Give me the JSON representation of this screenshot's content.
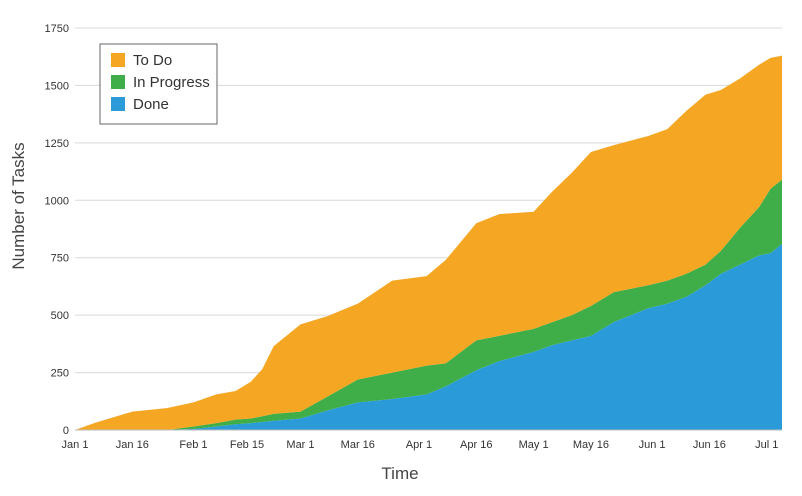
{
  "chart_data": {
    "type": "area",
    "stacked": true,
    "title": "",
    "xlabel": "Time",
    "ylabel": "Number of Tasks",
    "ylim": [
      0,
      1750
    ],
    "yticks": [
      0,
      250,
      500,
      750,
      1000,
      1250,
      1500,
      1750
    ],
    "xlim": [
      "Jan 1",
      "Jul 5"
    ],
    "xtick_labels": [
      "Jan 1",
      "Jan 16",
      "Feb 1",
      "Feb 15",
      "Mar 1",
      "Mar 16",
      "Apr 1",
      "Apr 16",
      "May 1",
      "May 16",
      "Jun 1",
      "Jun 16",
      "Jul 1"
    ],
    "grid": "horizontal",
    "legend_position": "top-left",
    "x": [
      "Jan 1",
      "Jan 6",
      "Jan 16",
      "Jan 25",
      "Feb 1",
      "Feb 7",
      "Feb 12",
      "Feb 16",
      "Feb 19",
      "Feb 22",
      "Mar 1",
      "Mar 8",
      "Mar 16",
      "Mar 25",
      "Apr 3",
      "Apr 8",
      "Apr 16",
      "Apr 22",
      "May 1",
      "May 6",
      "May 11",
      "May 16",
      "May 22",
      "May 31",
      "Jun 5",
      "Jun 10",
      "Jun 15",
      "Jun 19",
      "Jun 24",
      "Jun 29",
      "Jul 2",
      "Jul 5"
    ],
    "series": [
      {
        "name": "Done",
        "color": "#2a9bd8",
        "values": [
          0,
          0,
          0,
          0,
          5,
          15,
          25,
          30,
          35,
          40,
          50,
          85,
          120,
          135,
          155,
          190,
          260,
          300,
          340,
          370,
          390,
          410,
          470,
          530,
          550,
          580,
          630,
          680,
          720,
          760,
          770,
          810
        ]
      },
      {
        "name": "In Progress",
        "color": "#3fae49",
        "values": [
          0,
          0,
          0,
          0,
          10,
          15,
          20,
          20,
          25,
          30,
          30,
          60,
          100,
          115,
          125,
          100,
          130,
          110,
          100,
          100,
          110,
          130,
          130,
          100,
          100,
          100,
          90,
          100,
          160,
          210,
          280,
          280
        ]
      },
      {
        "name": "To Do",
        "color": "#f5a623",
        "values": [
          0,
          30,
          80,
          95,
          105,
          125,
          125,
          160,
          205,
          295,
          380,
          350,
          330,
          400,
          390,
          450,
          510,
          530,
          510,
          570,
          620,
          670,
          640,
          650,
          660,
          710,
          740,
          700,
          650,
          620,
          570,
          540
        ]
      }
    ]
  }
}
